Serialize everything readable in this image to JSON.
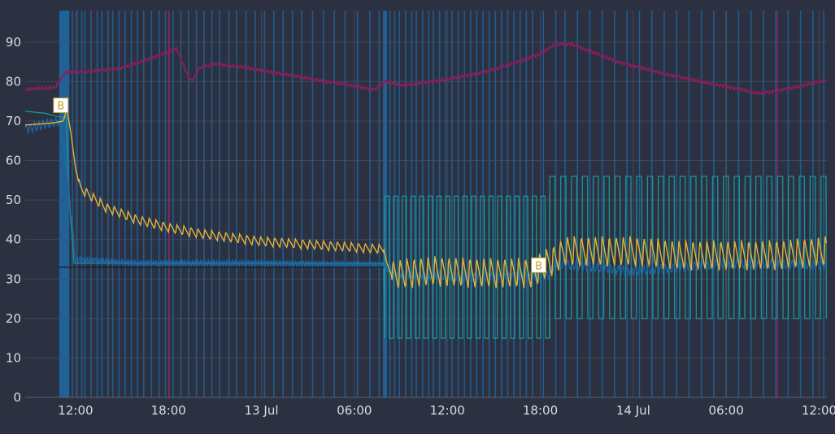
{
  "chart_data": {
    "type": "line",
    "title": "",
    "xlabel": "",
    "ylabel": "",
    "ylim": [
      0,
      98
    ],
    "y_ticks": [
      0,
      10,
      20,
      30,
      40,
      50,
      60,
      70,
      80,
      90
    ],
    "x_range_hours": [
      8.75,
      60.5
    ],
    "x_ticks": [
      {
        "label": "12:00",
        "hour": 12
      },
      {
        "label": "18:00",
        "hour": 18
      },
      {
        "label": "13 Jul",
        "hour": 24
      },
      {
        "label": "06:00",
        "hour": 30
      },
      {
        "label": "12:00",
        "hour": 36
      },
      {
        "label": "18:00",
        "hour": 42
      },
      {
        "label": "14 Jul",
        "hour": 48
      },
      {
        "label": "06:00",
        "hour": 54
      },
      {
        "label": "12:00",
        "hour": 60
      }
    ],
    "grid": true,
    "legend": "none",
    "colors": {
      "background": "#2b3140",
      "grid": "#4a5366",
      "humidity": "#8e1e5c",
      "temperature": "#e3b23c",
      "setpoint": "#1aa0a0",
      "valve": "#1e6aa8",
      "marker": "#c9a227"
    },
    "series": [
      {
        "key": "humidity",
        "points": [
          [
            8.75,
            78
          ],
          [
            10.7,
            78.5
          ],
          [
            11.1,
            81
          ],
          [
            11.4,
            82.5
          ],
          [
            13,
            82.5
          ],
          [
            15,
            83.5
          ],
          [
            17,
            86
          ],
          [
            18.5,
            88.5
          ],
          [
            19.2,
            82
          ],
          [
            19.5,
            80
          ],
          [
            20,
            83.5
          ],
          [
            21,
            84.5
          ],
          [
            23,
            83.5
          ],
          [
            26,
            81.5
          ],
          [
            29,
            79.5
          ],
          [
            31.3,
            78
          ],
          [
            32,
            80
          ],
          [
            33,
            79
          ],
          [
            36,
            80.5
          ],
          [
            39,
            83
          ],
          [
            42,
            87
          ],
          [
            43,
            89.5
          ],
          [
            44,
            89.5
          ],
          [
            47,
            85
          ],
          [
            50,
            82
          ],
          [
            53,
            79.5
          ],
          [
            55,
            78
          ],
          [
            56,
            77
          ],
          [
            57,
            77.5
          ],
          [
            59,
            79
          ],
          [
            60,
            80
          ],
          [
            60.5,
            80.5
          ]
        ]
      },
      {
        "key": "temperature",
        "points": [
          [
            8.75,
            69
          ],
          [
            10.5,
            69.5
          ],
          [
            11.2,
            70
          ],
          [
            11.45,
            73
          ],
          [
            11.7,
            67
          ],
          [
            12,
            58
          ],
          [
            12.3,
            53
          ],
          [
            14,
            48
          ],
          [
            16,
            45
          ],
          [
            18,
            43
          ],
          [
            20,
            41.5
          ],
          [
            22,
            40.5
          ],
          [
            24,
            39.5
          ],
          [
            26,
            39
          ],
          [
            28,
            38.5
          ],
          [
            30,
            38
          ],
          [
            31.9,
            37.5
          ],
          [
            32.1,
            34
          ],
          [
            32.4,
            31
          ],
          [
            35,
            32
          ],
          [
            38,
            31.5
          ],
          [
            40,
            31.5
          ],
          [
            41.7,
            31.5
          ],
          [
            42,
            33
          ],
          [
            43,
            35
          ],
          [
            43.5,
            37
          ],
          [
            45,
            37
          ],
          [
            48,
            37
          ],
          [
            51,
            36
          ],
          [
            54,
            36
          ],
          [
            57,
            36
          ],
          [
            60.5,
            37
          ]
        ],
        "oscillation": {
          "amplitude_start": 1.2,
          "amplitude_after_step": 3.8,
          "period_hours": 0.45
        }
      },
      {
        "key": "setpoint",
        "points": [
          [
            8.75,
            72.5
          ],
          [
            10,
            72
          ],
          [
            11,
            71
          ],
          [
            11.4,
            71
          ],
          [
            11.6,
            50
          ],
          [
            11.9,
            34
          ],
          [
            14,
            34
          ],
          [
            31.9,
            34
          ]
        ],
        "square_waves": [
          {
            "start": 31.95,
            "end": 42.6,
            "low": 15,
            "high": 51,
            "period": 0.56
          },
          {
            "start": 42.6,
            "end": 60.5,
            "low": 20,
            "high": 56,
            "period": 0.7
          }
        ]
      },
      {
        "key": "valve",
        "points": [
          [
            8.75,
            68
          ],
          [
            11,
            70
          ],
          [
            11.5,
            55
          ],
          [
            12,
            35
          ],
          [
            16,
            34
          ],
          [
            24,
            34
          ],
          [
            31.9,
            33.5
          ],
          [
            32.1,
            33
          ],
          [
            33,
            31.5
          ],
          [
            37,
            30.5
          ],
          [
            41.7,
            30.5
          ],
          [
            42.5,
            31
          ],
          [
            43,
            34
          ],
          [
            48,
            32
          ],
          [
            54,
            34
          ],
          [
            60.5,
            33.5
          ]
        ]
      }
    ],
    "baseline": {
      "value": 33,
      "start": 10.9,
      "end": 31.9
    },
    "markers": [
      {
        "label": "B",
        "hour": 11.05,
        "value": 74
      },
      {
        "label": "B",
        "hour": 41.9,
        "value": 33.5
      }
    ],
    "event_bands": [
      {
        "start": 10.95,
        "end": 11.6
      },
      {
        "start": 31.85,
        "end": 32.1
      }
    ],
    "event_lines_blue": [
      11.8,
      12.1,
      12.4,
      12.6,
      13,
      13.4,
      13.7,
      14.1,
      14.4,
      14.8,
      15.2,
      15.6,
      16.0,
      16.4,
      16.9,
      17.4,
      17.8,
      18.3,
      18.8,
      19.3,
      19.8,
      20.3,
      20.8,
      21.3,
      21.9,
      22.4,
      23.0,
      23.6,
      24.2,
      24.8,
      25.4,
      26.0,
      26.6,
      27.3,
      28.0,
      28.7,
      29.4,
      30.2,
      31.0,
      31.6,
      32.3,
      32.6,
      32.9,
      33.3,
      33.7,
      34.0,
      34.4,
      34.8,
      35.1,
      35.5,
      35.9,
      36.3,
      36.7,
      37.1,
      37.5,
      37.9,
      38.3,
      38.7,
      39.1,
      39.5,
      39.9,
      40.3,
      40.7,
      41.1,
      41.5,
      42.2,
      43.0,
      43.6,
      44.4,
      45.2,
      46.0,
      46.8,
      47.6,
      48.4,
      49.2,
      50.0,
      50.8,
      51.6,
      52.4,
      53.2,
      54.0,
      54.8,
      55.6,
      56.4,
      57.2,
      58.0,
      58.8,
      59.6,
      60.3
    ],
    "event_lines_purple": [
      18.05,
      57.3
    ]
  }
}
